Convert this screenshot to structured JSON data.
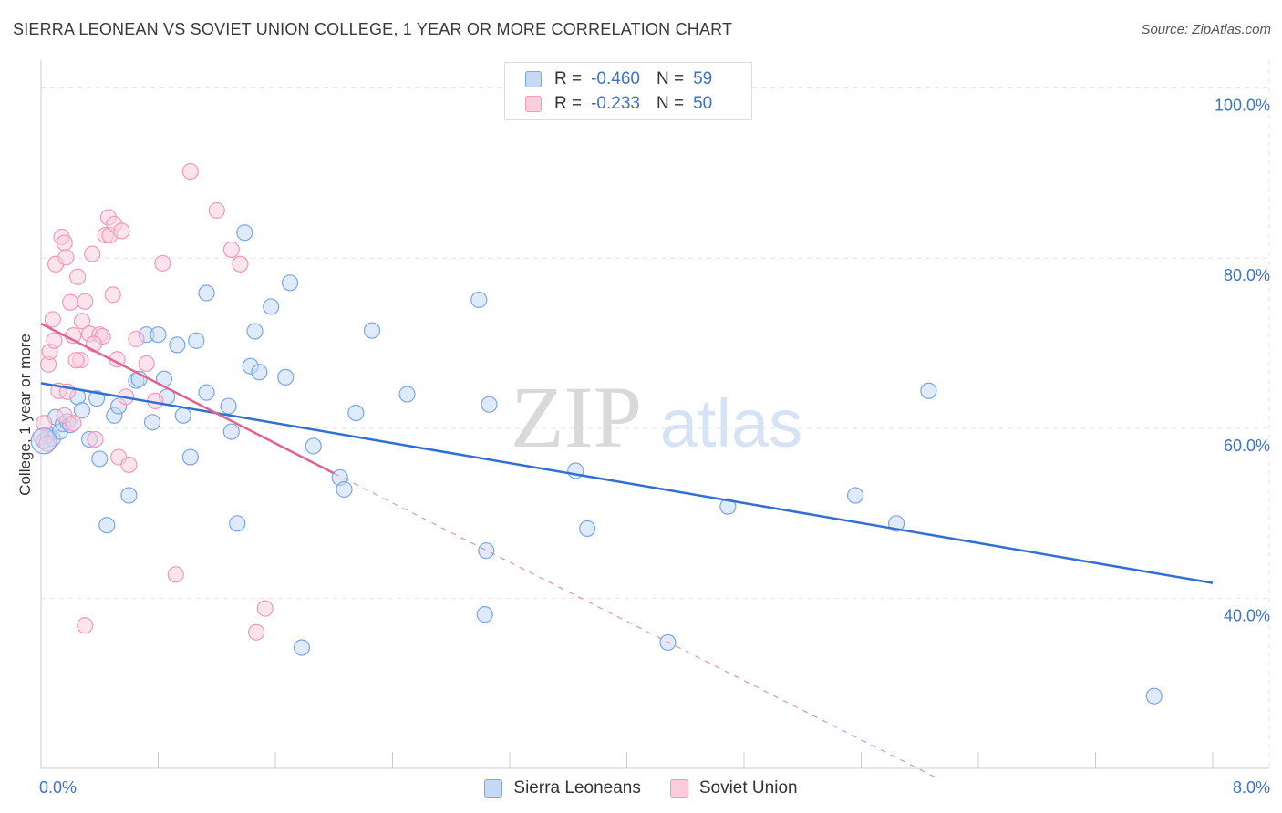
{
  "title": "SIERRA LEONEAN VS SOVIET UNION COLLEGE, 1 YEAR OR MORE CORRELATION CHART",
  "source": "Source: ZipAtlas.com",
  "watermark": {
    "zip": "ZIP",
    "atlas": "atlas"
  },
  "legend": {
    "rows": [
      {
        "r_label": "R =",
        "r_value": "-0.460",
        "n_label": "N =",
        "n_value": "59",
        "color": "#7aa6e8",
        "fill": "#c5d9f5"
      },
      {
        "r_label": "R =",
        "r_value": "-0.233",
        "n_label": "N =",
        "n_value": "50",
        "color": "#f09ab8",
        "fill": "#f9cddc"
      }
    ]
  },
  "bottom_legend": [
    {
      "label": "Sierra Leoneans",
      "color": "#7aa6e8",
      "fill": "#c5d9f5"
    },
    {
      "label": "Soviet Union",
      "color": "#f09ab8",
      "fill": "#f9cddc"
    }
  ],
  "chart_data": {
    "type": "scatter",
    "title": "SIERRA LEONEAN VS SOVIET UNION COLLEGE, 1 YEAR OR MORE CORRELATION CHART",
    "xlabel": "",
    "ylabel": "College, 1 year or more",
    "xlim": [
      0.0,
      8.0
    ],
    "ylim": [
      20.0,
      102.0
    ],
    "x_tick_labels": [
      {
        "value": 0.0,
        "label": "0.0%"
      },
      {
        "value": 8.0,
        "label": "8.0%"
      }
    ],
    "y_tick_labels": [
      {
        "value": 100,
        "label": "100.0%"
      },
      {
        "value": 80,
        "label": "80.0%"
      },
      {
        "value": 60,
        "label": "60.0%"
      },
      {
        "value": 40,
        "label": "40.0%"
      }
    ],
    "grid": true,
    "legend_position": "top-center",
    "series": [
      {
        "name": "Sierra Leoneans",
        "color": "#7aa6e8",
        "fill": "#c5d9f5",
        "trend": {
          "x": [
            0.0,
            8.0
          ],
          "y": [
            65.3,
            41.8
          ],
          "color": "#3070d0"
        },
        "points": [
          [
            0.02,
            58.5
          ],
          [
            0.05,
            59.2
          ],
          [
            0.08,
            58.8
          ],
          [
            0.1,
            61.3
          ],
          [
            0.13,
            59.6
          ],
          [
            0.15,
            60.5
          ],
          [
            0.18,
            60.8
          ],
          [
            0.2,
            60.4
          ],
          [
            0.25,
            63.7
          ],
          [
            0.28,
            62.1
          ],
          [
            0.33,
            58.7
          ],
          [
            0.38,
            63.5
          ],
          [
            0.4,
            56.4
          ],
          [
            0.45,
            48.6
          ],
          [
            0.5,
            61.5
          ],
          [
            0.53,
            62.6
          ],
          [
            0.6,
            52.1
          ],
          [
            0.65,
            65.6
          ],
          [
            0.67,
            65.8
          ],
          [
            0.72,
            71.0
          ],
          [
            0.76,
            60.7
          ],
          [
            0.8,
            71.0
          ],
          [
            0.84,
            65.8
          ],
          [
            0.86,
            63.7
          ],
          [
            0.93,
            69.8
          ],
          [
            0.97,
            61.5
          ],
          [
            1.02,
            56.6
          ],
          [
            1.06,
            70.3
          ],
          [
            1.13,
            64.2
          ],
          [
            1.13,
            75.9
          ],
          [
            1.28,
            62.6
          ],
          [
            1.3,
            59.6
          ],
          [
            1.34,
            48.8
          ],
          [
            1.39,
            83.0
          ],
          [
            1.43,
            67.3
          ],
          [
            1.46,
            71.4
          ],
          [
            1.49,
            66.6
          ],
          [
            1.57,
            74.3
          ],
          [
            1.67,
            66.0
          ],
          [
            1.7,
            77.1
          ],
          [
            1.78,
            34.2
          ],
          [
            1.86,
            57.9
          ],
          [
            2.04,
            54.2
          ],
          [
            2.07,
            52.8
          ],
          [
            2.15,
            61.8
          ],
          [
            2.26,
            71.5
          ],
          [
            2.5,
            64.0
          ],
          [
            2.99,
            75.1
          ],
          [
            3.03,
            38.1
          ],
          [
            3.04,
            45.6
          ],
          [
            3.06,
            62.8
          ],
          [
            3.65,
            55.0
          ],
          [
            3.73,
            48.2
          ],
          [
            4.28,
            34.8
          ],
          [
            4.69,
            50.8
          ],
          [
            5.56,
            52.1
          ],
          [
            5.84,
            48.8
          ],
          [
            6.06,
            64.4
          ],
          [
            7.6,
            28.5
          ]
        ]
      },
      {
        "name": "Soviet Union",
        "color": "#f09ab8",
        "fill": "#f9cddc",
        "trend": {
          "x": [
            0.0,
            2.0
          ],
          "y": [
            72.3,
            54.7
          ],
          "dashed_to": {
            "x": 6.1,
            "y": 19.0
          },
          "color": "#e0628f"
        },
        "points": [
          [
            0.0,
            59.0
          ],
          [
            0.02,
            60.6
          ],
          [
            0.04,
            58.2
          ],
          [
            0.05,
            67.5
          ],
          [
            0.06,
            69.0
          ],
          [
            0.08,
            72.8
          ],
          [
            0.1,
            79.3
          ],
          [
            0.12,
            64.4
          ],
          [
            0.14,
            82.5
          ],
          [
            0.16,
            81.8
          ],
          [
            0.17,
            80.1
          ],
          [
            0.2,
            74.8
          ],
          [
            0.22,
            70.9
          ],
          [
            0.25,
            77.8
          ],
          [
            0.27,
            68.0
          ],
          [
            0.28,
            72.6
          ],
          [
            0.3,
            74.9
          ],
          [
            0.33,
            71.1
          ],
          [
            0.35,
            80.5
          ],
          [
            0.37,
            58.7
          ],
          [
            0.4,
            71.0
          ],
          [
            0.42,
            70.8
          ],
          [
            0.44,
            82.7
          ],
          [
            0.46,
            84.8
          ],
          [
            0.47,
            82.7
          ],
          [
            0.49,
            75.7
          ],
          [
            0.5,
            84.0
          ],
          [
            0.52,
            68.1
          ],
          [
            0.53,
            56.6
          ],
          [
            0.55,
            83.2
          ],
          [
            0.58,
            63.7
          ],
          [
            0.6,
            55.7
          ],
          [
            0.65,
            70.5
          ],
          [
            0.72,
            67.6
          ],
          [
            0.78,
            63.2
          ],
          [
            0.83,
            79.4
          ],
          [
            0.92,
            42.8
          ],
          [
            1.02,
            90.2
          ],
          [
            1.2,
            85.6
          ],
          [
            1.3,
            81.0
          ],
          [
            1.36,
            79.3
          ],
          [
            1.47,
            36.0
          ],
          [
            1.53,
            38.8
          ],
          [
            0.3,
            36.8
          ],
          [
            0.16,
            61.5
          ],
          [
            0.22,
            60.6
          ],
          [
            0.36,
            69.9
          ],
          [
            0.24,
            68.0
          ],
          [
            0.09,
            70.3
          ],
          [
            0.18,
            64.3
          ]
        ]
      }
    ]
  }
}
